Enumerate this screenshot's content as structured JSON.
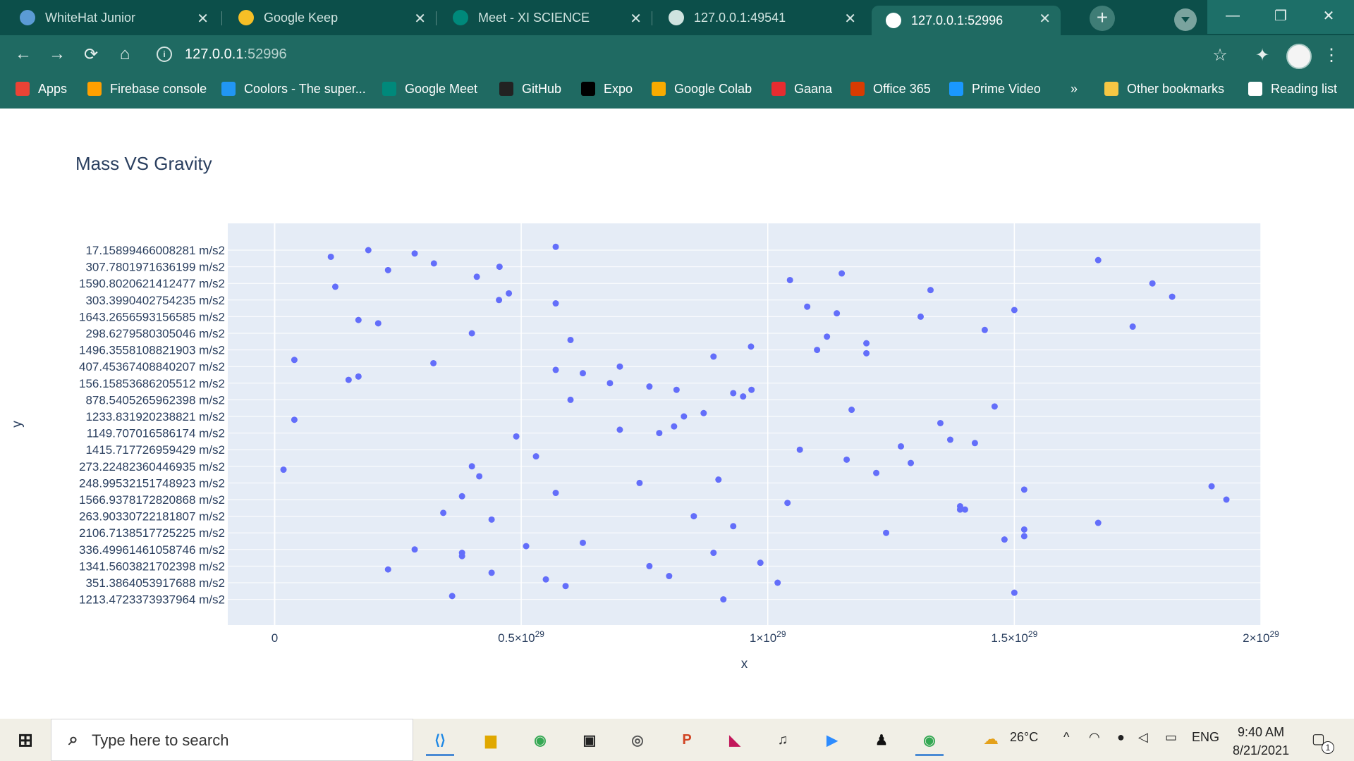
{
  "browser": {
    "tabs": [
      {
        "title": "WhiteHat Junior",
        "icon": "whitehat-icon",
        "color": "#5b9bd5"
      },
      {
        "title": "Google Keep",
        "icon": "keep-icon",
        "color": "#f6bf26"
      },
      {
        "title": "Meet - XI SCIENCE",
        "icon": "meet-icon",
        "color": "#00897b"
      },
      {
        "title": "127.0.0.1:49541",
        "icon": "globe-icon",
        "color": "#cfe3df"
      },
      {
        "title": "127.0.0.1:52996",
        "icon": "globe-icon",
        "color": "#ffffff",
        "active": true
      }
    ],
    "url_host": "127.0.0.1",
    "url_port": ":52996",
    "bookmarks": [
      {
        "label": "Apps",
        "icon": "apps-grid-icon",
        "color": "#ea4335"
      },
      {
        "label": "Firebase console",
        "icon": "firebase-icon",
        "color": "#ffa000"
      },
      {
        "label": "Coolors - The super...",
        "icon": "coolors-icon",
        "color": "#2196f3"
      },
      {
        "label": "Google Meet",
        "icon": "meet-icon",
        "color": "#00897b"
      },
      {
        "label": "GitHub",
        "icon": "github-icon",
        "color": "#222222"
      },
      {
        "label": "Expo",
        "icon": "expo-icon",
        "color": "#000000"
      },
      {
        "label": "Google Colab",
        "icon": "colab-icon",
        "color": "#f9ab00"
      },
      {
        "label": "Gaana",
        "icon": "gaana-icon",
        "color": "#e72c30"
      },
      {
        "label": "Office 365",
        "icon": "office-icon",
        "color": "#d83b01"
      },
      {
        "label": "Prime Video",
        "icon": "prime-video-icon",
        "color": "#1a98ff"
      },
      {
        "label": "»",
        "icon": "",
        "color": ""
      },
      {
        "label": "Other bookmarks",
        "icon": "folder-icon",
        "color": "#f6c744"
      },
      {
        "label": "Reading list",
        "icon": "reading-list-icon",
        "color": "#ffffff"
      }
    ]
  },
  "chart_data": {
    "type": "scatter",
    "title": "Mass VS Gravity",
    "xlabel": "x",
    "ylabel": "y",
    "xlim": [
      -9.5e+27,
      2e+29
    ],
    "x_ticks": [
      {
        "value": 0,
        "mantissa": "0",
        "exp": ""
      },
      {
        "value": 5e+28,
        "mantissa": "0.5×10",
        "exp": "29"
      },
      {
        "value": 1e+29,
        "mantissa": "1×10",
        "exp": "29"
      },
      {
        "value": 1.5e+29,
        "mantissa": "1.5×10",
        "exp": "29"
      },
      {
        "value": 2e+29,
        "mantissa": "2×10",
        "exp": "29"
      }
    ],
    "y_categories": [
      "17.15899466008281 m/s2",
      "307.7801971636199 m/s2",
      "1590.8020621412477 m/s2",
      "303.3990402754235 m/s2",
      "1643.2656593156585 m/s2",
      "298.6279580305046 m/s2",
      "1496.3558108821903 m/s2",
      "407.45367408840207 m/s2",
      "156.15853686205512 m/s2",
      "878.5405265962398 m/s2",
      "1233.831920238821 m/s2",
      "1149.707016586174 m/s2",
      "1415.717726959429 m/s2",
      "273.22482360446935 m/s2",
      "248.99532151748923 m/s2",
      "1566.9378172820868 m/s2",
      "263.90330722181807 m/s2",
      "2106.7138517725225 m/s2",
      "336.49961461058746 m/s2",
      "1341.5603821702398 m/s2",
      "351.3864053917688 m/s2",
      "1213.4723373937964 m/s2"
    ],
    "points": [
      [
        0.114,
        0.4
      ],
      [
        0.19,
        0.0
      ],
      [
        0.284,
        0.2
      ],
      [
        0.57,
        -0.2
      ],
      [
        1.67,
        0.6
      ],
      [
        0.23,
        1.2
      ],
      [
        0.323,
        0.8
      ],
      [
        0.456,
        1.0
      ],
      [
        0.41,
        1.6
      ],
      [
        1.15,
        1.4
      ],
      [
        0.123,
        2.2
      ],
      [
        1.045,
        1.8
      ],
      [
        1.33,
        2.4
      ],
      [
        1.78,
        2.0
      ],
      [
        0.455,
        3.0
      ],
      [
        0.475,
        2.6
      ],
      [
        0.57,
        3.2
      ],
      [
        1.08,
        3.4
      ],
      [
        1.14,
        3.8
      ],
      [
        1.5,
        3.6
      ],
      [
        1.82,
        2.8
      ],
      [
        0.17,
        4.2
      ],
      [
        0.21,
        4.4
      ],
      [
        1.31,
        4.0
      ],
      [
        1.44,
        4.8
      ],
      [
        1.74,
        4.6
      ],
      [
        0.4,
        5.0
      ],
      [
        0.6,
        5.4
      ],
      [
        1.12,
        5.2
      ],
      [
        1.2,
        5.6
      ],
      [
        0.966,
        5.8
      ],
      [
        1.1,
        6.0
      ],
      [
        1.2,
        6.2
      ],
      [
        0.04,
        6.6
      ],
      [
        0.322,
        6.8
      ],
      [
        0.89,
        6.4
      ],
      [
        0.7,
        7.0
      ],
      [
        0.57,
        7.2
      ],
      [
        0.625,
        7.4
      ],
      [
        0.15,
        7.8
      ],
      [
        0.17,
        7.6
      ],
      [
        0.68,
        8.0
      ],
      [
        0.76,
        8.2
      ],
      [
        0.815,
        8.4
      ],
      [
        0.93,
        8.6
      ],
      [
        0.967,
        8.4
      ],
      [
        0.95,
        8.8
      ],
      [
        0.6,
        9.0
      ],
      [
        0.04,
        10.2
      ],
      [
        1.17,
        9.6
      ],
      [
        1.46,
        9.4
      ],
      [
        0.87,
        9.8
      ],
      [
        0.83,
        10.0
      ],
      [
        0.81,
        10.6
      ],
      [
        0.7,
        10.8
      ],
      [
        1.35,
        10.4
      ],
      [
        0.78,
        11.0
      ],
      [
        0.49,
        11.2
      ],
      [
        1.37,
        11.4
      ],
      [
        1.42,
        11.6
      ],
      [
        1.27,
        11.8
      ],
      [
        1.065,
        12.0
      ],
      [
        0.53,
        12.4
      ],
      [
        1.16,
        12.6
      ],
      [
        1.29,
        12.8
      ],
      [
        0.4,
        13.0
      ],
      [
        0.018,
        13.2
      ],
      [
        0.415,
        13.6
      ],
      [
        1.22,
        13.4
      ],
      [
        0.9,
        13.8
      ],
      [
        0.74,
        14.0
      ],
      [
        1.9,
        14.2
      ],
      [
        1.52,
        14.4
      ],
      [
        1.93,
        15.0
      ],
      [
        0.57,
        14.6
      ],
      [
        0.38,
        14.8
      ],
      [
        1.04,
        15.2
      ],
      [
        1.39,
        15.4
      ],
      [
        1.4,
        15.6
      ],
      [
        1.39,
        15.6
      ],
      [
        0.342,
        15.8
      ],
      [
        0.85,
        16.0
      ],
      [
        0.44,
        16.2
      ],
      [
        1.67,
        16.4
      ],
      [
        0.93,
        16.6
      ],
      [
        1.52,
        16.8
      ],
      [
        1.52,
        17.2
      ],
      [
        1.24,
        17.0
      ],
      [
        1.48,
        17.4
      ],
      [
        0.625,
        17.6
      ],
      [
        0.51,
        17.8
      ],
      [
        0.284,
        18.0
      ],
      [
        0.38,
        18.2
      ],
      [
        0.38,
        18.4
      ],
      [
        0.89,
        18.2
      ],
      [
        0.985,
        18.8
      ],
      [
        0.76,
        19.0
      ],
      [
        0.23,
        19.2
      ],
      [
        0.44,
        19.4
      ],
      [
        0.8,
        19.6
      ],
      [
        0.55,
        19.8
      ],
      [
        0.59,
        20.2
      ],
      [
        1.02,
        20.0
      ],
      [
        1.5,
        20.6
      ],
      [
        0.36,
        20.8
      ],
      [
        0.91,
        21.0
      ]
    ],
    "marker_color": "#636efa",
    "plot_bg": "#e5ecf6",
    "grid": true
  },
  "taskbar": {
    "search_placeholder": "Type here to search",
    "weather": "26°C",
    "language": "ENG",
    "time": "9:40 AM",
    "date": "8/21/2021",
    "notifications": "1"
  }
}
